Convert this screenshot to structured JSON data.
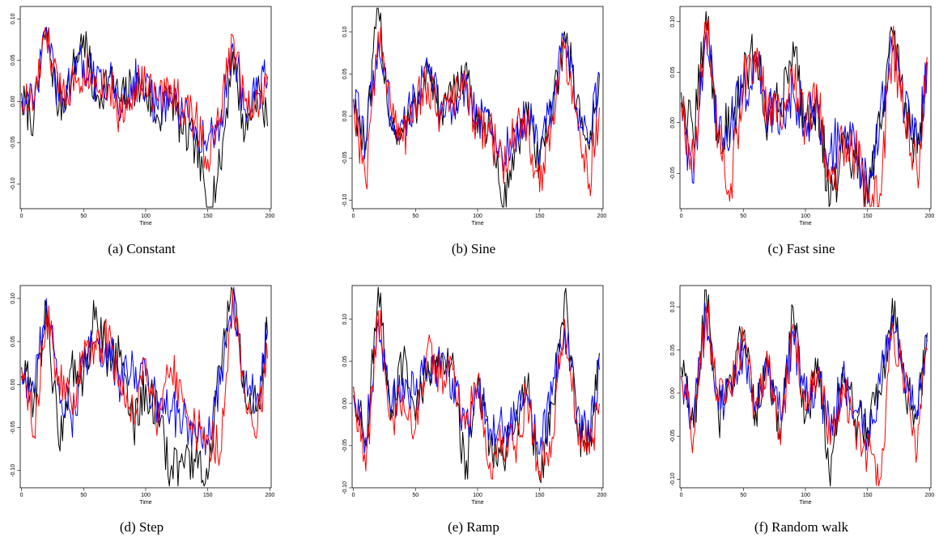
{
  "chart_data": [
    {
      "type": "line",
      "caption": "(a) Constant",
      "xlabel": "Time",
      "ylabel": "",
      "xlim": [
        0,
        200
      ],
      "ylim": [
        -0.13,
        0.115
      ],
      "xticks": [
        "0",
        "50",
        "100",
        "150",
        "200"
      ],
      "yticks": [
        "-0.10",
        "-0.05",
        "0.00",
        "0.05",
        "0.10"
      ],
      "x": [
        0,
        10,
        20,
        30,
        40,
        50,
        60,
        70,
        80,
        90,
        100,
        110,
        120,
        130,
        140,
        150,
        160,
        170,
        180,
        190,
        198
      ],
      "series": [
        {
          "color": "#000000",
          "values": [
            0.0,
            -0.02,
            0.09,
            -0.01,
            0.03,
            0.08,
            0.0,
            0.03,
            0.0,
            0.02,
            0.01,
            -0.02,
            0.01,
            -0.04,
            -0.05,
            -0.13,
            -0.08,
            0.06,
            -0.04,
            0.02,
            -0.03
          ]
        },
        {
          "color": "#0000ff",
          "values": [
            0.01,
            -0.01,
            0.09,
            0.0,
            0.02,
            0.05,
            0.02,
            0.03,
            -0.01,
            0.03,
            0.02,
            -0.01,
            0.0,
            -0.02,
            -0.03,
            -0.05,
            -0.03,
            0.07,
            -0.01,
            0.01,
            0.03
          ]
        },
        {
          "color": "#ff0000",
          "values": [
            0.0,
            0.0,
            0.08,
            0.01,
            0.02,
            0.04,
            0.03,
            0.02,
            -0.02,
            0.02,
            0.02,
            0.0,
            0.02,
            -0.01,
            -0.02,
            -0.07,
            -0.02,
            0.08,
            0.0,
            0.0,
            0.02
          ]
        }
      ]
    },
    {
      "type": "line",
      "caption": "(b) Sine",
      "xlabel": "Time",
      "ylabel": "",
      "xlim": [
        0,
        200
      ],
      "ylim": [
        -0.11,
        0.13
      ],
      "xticks": [
        "0",
        "50",
        "100",
        "150",
        "200"
      ],
      "yticks": [
        "-0.10",
        "-0.05",
        "0.00",
        "0.05",
        "0.10"
      ],
      "x": [
        0,
        10,
        20,
        30,
        40,
        50,
        60,
        70,
        80,
        90,
        100,
        110,
        120,
        130,
        140,
        150,
        160,
        170,
        180,
        190,
        198
      ],
      "series": [
        {
          "color": "#000000",
          "values": [
            0.02,
            -0.04,
            0.13,
            -0.01,
            -0.02,
            0.01,
            0.06,
            0.0,
            0.02,
            0.06,
            -0.02,
            0.0,
            -0.11,
            -0.04,
            0.0,
            -0.06,
            0.0,
            0.1,
            0.02,
            -0.04,
            0.05
          ]
        },
        {
          "color": "#0000ff",
          "values": [
            0.02,
            -0.03,
            0.09,
            0.0,
            -0.01,
            0.02,
            0.05,
            0.01,
            0.01,
            0.04,
            0.0,
            -0.01,
            -0.05,
            -0.02,
            0.0,
            -0.04,
            0.01,
            0.09,
            0.01,
            -0.03,
            0.05
          ]
        },
        {
          "color": "#ff0000",
          "values": [
            0.02,
            -0.08,
            0.1,
            0.01,
            -0.03,
            0.02,
            0.04,
            0.0,
            0.02,
            0.03,
            -0.01,
            -0.02,
            -0.06,
            -0.02,
            -0.01,
            -0.09,
            0.0,
            0.08,
            0.0,
            -0.08,
            0.01
          ]
        }
      ]
    },
    {
      "type": "line",
      "caption": "(c) Fast sine",
      "xlabel": "Time",
      "ylabel": "",
      "xlim": [
        0,
        200
      ],
      "ylim": [
        -0.085,
        0.115
      ],
      "xticks": [
        "0",
        "50",
        "100",
        "150",
        "200"
      ],
      "yticks": [
        "-0.05",
        "0.00",
        "0.05",
        "0.10"
      ],
      "x": [
        0,
        10,
        20,
        30,
        40,
        50,
        60,
        70,
        80,
        90,
        100,
        110,
        120,
        130,
        140,
        150,
        160,
        170,
        180,
        190,
        198
      ],
      "series": [
        {
          "color": "#000000",
          "values": [
            0.03,
            -0.02,
            0.11,
            -0.02,
            0.0,
            0.04,
            0.07,
            0.0,
            0.02,
            0.08,
            0.0,
            0.02,
            -0.08,
            -0.03,
            -0.04,
            -0.08,
            0.0,
            0.09,
            0.02,
            -0.03,
            0.06
          ]
        },
        {
          "color": "#0000ff",
          "values": [
            0.02,
            -0.06,
            0.09,
            -0.01,
            0.0,
            0.03,
            0.06,
            0.01,
            0.01,
            0.03,
            0.01,
            0.01,
            -0.03,
            -0.01,
            -0.03,
            -0.07,
            0.01,
            0.07,
            0.01,
            -0.02,
            0.06
          ]
        },
        {
          "color": "#ff0000",
          "values": [
            0.02,
            -0.05,
            0.1,
            -0.01,
            -0.06,
            0.04,
            0.05,
            0.02,
            0.0,
            0.04,
            0.0,
            0.02,
            -0.06,
            -0.02,
            -0.03,
            -0.08,
            -0.07,
            0.08,
            0.0,
            -0.05,
            0.065
          ]
        }
      ]
    },
    {
      "type": "line",
      "caption": "(d) Step",
      "xlabel": "Time",
      "ylabel": "",
      "xlim": [
        0,
        200
      ],
      "ylim": [
        -0.12,
        0.115
      ],
      "xticks": [
        "0",
        "50",
        "100",
        "150",
        "200"
      ],
      "yticks": [
        "-0.10",
        "-0.05",
        "0.00",
        "0.05",
        "0.10"
      ],
      "x": [
        0,
        10,
        20,
        30,
        40,
        50,
        60,
        70,
        80,
        90,
        100,
        110,
        120,
        130,
        140,
        150,
        160,
        170,
        180,
        190,
        198
      ],
      "series": [
        {
          "color": "#000000",
          "values": [
            0.02,
            -0.02,
            0.09,
            -0.07,
            0.02,
            0.01,
            0.09,
            0.03,
            0.04,
            -0.05,
            0.0,
            -0.04,
            -0.1,
            -0.09,
            -0.09,
            -0.11,
            0.02,
            0.11,
            -0.02,
            -0.03,
            0.06
          ]
        },
        {
          "color": "#0000ff",
          "values": [
            0.01,
            -0.01,
            0.1,
            0.0,
            -0.04,
            0.02,
            0.05,
            0.04,
            0.0,
            0.02,
            0.01,
            -0.02,
            -0.03,
            -0.04,
            -0.06,
            -0.07,
            0.0,
            0.1,
            0.0,
            -0.01,
            0.06
          ]
        },
        {
          "color": "#ff0000",
          "values": [
            0.02,
            -0.06,
            0.08,
            0.01,
            -0.02,
            0.03,
            0.04,
            0.06,
            -0.01,
            -0.03,
            0.03,
            -0.04,
            0.02,
            -0.02,
            -0.05,
            -0.06,
            -0.08,
            0.11,
            -0.01,
            -0.05,
            0.03
          ]
        }
      ]
    },
    {
      "type": "line",
      "caption": "(e) Ramp",
      "xlabel": "Time",
      "ylabel": "",
      "xlim": [
        0,
        200
      ],
      "ylim": [
        -0.1,
        0.14
      ],
      "xticks": [
        "0",
        "50",
        "100",
        "150",
        "200"
      ],
      "yticks": [
        "-0.10",
        "-0.05",
        "0.00",
        "0.05",
        "0.10"
      ],
      "x": [
        0,
        10,
        20,
        30,
        40,
        50,
        60,
        70,
        80,
        90,
        100,
        110,
        120,
        130,
        140,
        150,
        160,
        170,
        180,
        190,
        198
      ],
      "series": [
        {
          "color": "#000000",
          "values": [
            0.02,
            -0.05,
            0.14,
            -0.02,
            0.05,
            -0.02,
            0.05,
            0.04,
            0.06,
            -0.09,
            0.02,
            -0.05,
            -0.06,
            -0.03,
            0.02,
            -0.09,
            0.0,
            0.13,
            -0.03,
            -0.05,
            0.06
          ]
        },
        {
          "color": "#0000ff",
          "values": [
            0.01,
            -0.04,
            0.1,
            -0.01,
            0.03,
            0.01,
            0.04,
            0.04,
            0.03,
            -0.03,
            0.02,
            -0.03,
            -0.03,
            -0.02,
            0.01,
            -0.06,
            0.01,
            0.09,
            -0.01,
            -0.04,
            0.04
          ]
        },
        {
          "color": "#ff0000",
          "values": [
            0.02,
            -0.08,
            0.11,
            -0.02,
            0.01,
            -0.03,
            0.07,
            0.03,
            0.04,
            -0.03,
            0.03,
            -0.07,
            -0.04,
            -0.05,
            0.01,
            -0.08,
            -0.04,
            0.1,
            -0.02,
            -0.06,
            0.0
          ]
        }
      ]
    },
    {
      "type": "line",
      "caption": "(f) Random walk",
      "xlabel": "Time",
      "ylabel": "",
      "xlim": [
        0,
        200
      ],
      "ylim": [
        -0.11,
        0.125
      ],
      "xticks": [
        "0",
        "50",
        "100",
        "150",
        "200"
      ],
      "yticks": [
        "-0.10",
        "-0.05",
        "0.00",
        "0.05",
        "0.10"
      ],
      "x": [
        0,
        10,
        20,
        30,
        40,
        50,
        60,
        70,
        80,
        90,
        100,
        110,
        120,
        130,
        140,
        150,
        160,
        170,
        180,
        190,
        198
      ],
      "series": [
        {
          "color": "#000000",
          "values": [
            0.03,
            -0.04,
            0.12,
            -0.03,
            0.02,
            0.07,
            -0.02,
            0.03,
            -0.05,
            0.1,
            -0.03,
            0.04,
            -0.11,
            0.03,
            -0.03,
            -0.04,
            0.0,
            0.11,
            0.01,
            -0.03,
            0.06
          ]
        },
        {
          "color": "#0000ff",
          "values": [
            0.02,
            -0.03,
            0.09,
            -0.02,
            0.01,
            0.05,
            -0.01,
            0.02,
            -0.03,
            0.07,
            -0.01,
            0.02,
            -0.05,
            0.02,
            -0.02,
            -0.05,
            0.01,
            0.09,
            0.0,
            -0.02,
            0.07
          ]
        },
        {
          "color": "#ff0000",
          "values": [
            0.02,
            -0.05,
            0.1,
            -0.01,
            0.0,
            0.06,
            -0.02,
            0.03,
            -0.06,
            0.08,
            -0.02,
            0.03,
            -0.06,
            0.01,
            -0.04,
            -0.07,
            -0.1,
            0.08,
            0.01,
            -0.07,
            0.05
          ]
        }
      ]
    }
  ]
}
